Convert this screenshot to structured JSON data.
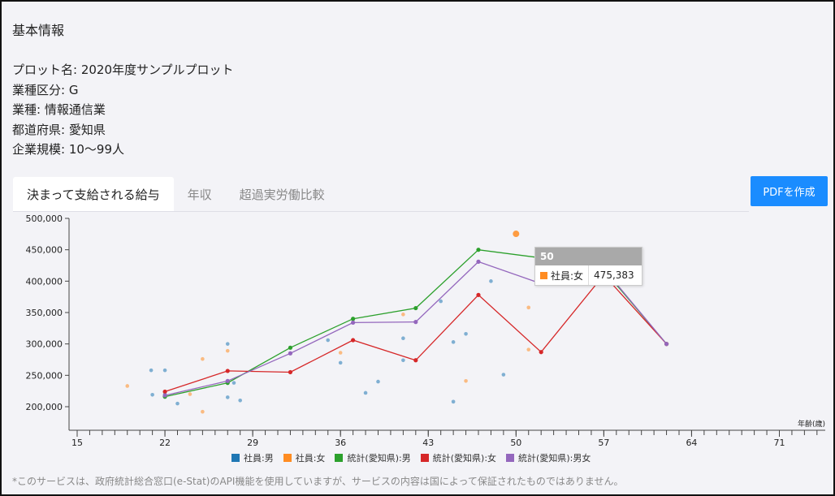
{
  "info": {
    "section_title": "基本情報",
    "plot_name": "プロット名: 2020年度サンプルプロット",
    "industry_class": "業種区分: G",
    "industry": "業種: 情報通信業",
    "prefecture": "都道府県: 愛知県",
    "company_size": "企業規模: 10〜99人"
  },
  "tabs": [
    {
      "label": "決まって支給される給与",
      "active": true
    },
    {
      "label": "年収",
      "active": false
    },
    {
      "label": "超過実労働比較",
      "active": false
    }
  ],
  "pdf_button": "PDFを作成",
  "footnote": "*このサービスは、政府統計総合窓口(e-Stat)のAPI機能を使用していますが、サービスの内容は国によって保証されたものではありません。",
  "tooltip": {
    "header": "50",
    "series": "社員:女",
    "value": "475,383",
    "color": "#ff8c22"
  },
  "colors": {
    "blue": "#1f77b4",
    "orange": "#ff8c22",
    "green": "#2ca02c",
    "red": "#d62728",
    "purple": "#9467bd",
    "pdf": "#1a8cff"
  },
  "chart_data": {
    "type": "scatter",
    "xlabel": "年齢(歳)",
    "ylabel": "",
    "xlim": [
      15,
      77
    ],
    "ylim": [
      170000,
      500000
    ],
    "x_ticks": [
      15,
      22,
      29,
      36,
      43,
      50,
      57,
      64,
      71
    ],
    "y_ticks": [
      200000,
      250000,
      300000,
      350000,
      400000,
      450000,
      500000
    ],
    "y_tick_labels": [
      "200,000",
      "250,000",
      "300,000",
      "350,000",
      "400,000",
      "450,000",
      "500,000"
    ],
    "legend": [
      "社員:男",
      "社員:女",
      "統計(愛知県):男",
      "統計(愛知県):女",
      "統計(愛知県):男女"
    ],
    "series": [
      {
        "name": "社員:男",
        "kind": "scatter",
        "color": "#1f77b4",
        "points": [
          [
            20.9,
            258000
          ],
          [
            21,
            219000
          ],
          [
            22,
            258000
          ],
          [
            22,
            220000
          ],
          [
            23,
            205000
          ],
          [
            27,
            300000
          ],
          [
            27,
            215000
          ],
          [
            28,
            210000
          ],
          [
            27.5,
            238000
          ],
          [
            35,
            306000
          ],
          [
            36,
            270000
          ],
          [
            38,
            222000
          ],
          [
            39,
            240000
          ],
          [
            41,
            309000
          ],
          [
            41,
            274000
          ],
          [
            44,
            368000
          ],
          [
            45,
            303000
          ],
          [
            45,
            208000
          ],
          [
            46,
            316000
          ],
          [
            48,
            400000
          ],
          [
            49,
            251000
          ]
        ]
      },
      {
        "name": "社員:女",
        "kind": "scatter",
        "color": "#ff8c22",
        "points": [
          [
            19,
            233000
          ],
          [
            24,
            220000
          ],
          [
            25,
            276000
          ],
          [
            25,
            192000
          ],
          [
            27,
            289000
          ],
          [
            36,
            286000
          ],
          [
            41,
            347000
          ],
          [
            46,
            241000
          ],
          [
            50,
            475383
          ],
          [
            51,
            358000
          ],
          [
            51,
            291000
          ]
        ]
      },
      {
        "name": "統計(愛知県):男",
        "kind": "line",
        "color": "#2ca02c",
        "points": [
          [
            22,
            216000
          ],
          [
            27,
            238000
          ],
          [
            32,
            294000
          ],
          [
            37,
            340000
          ],
          [
            42,
            357000
          ],
          [
            47,
            450000
          ],
          [
            52,
            437000
          ],
          [
            57,
            418000
          ],
          [
            62,
            300000
          ]
        ]
      },
      {
        "name": "統計(愛知県):女",
        "kind": "line",
        "color": "#d62728",
        "points": [
          [
            22,
            224000
          ],
          [
            27,
            257000
          ],
          [
            32,
            255000
          ],
          [
            37,
            306000
          ],
          [
            42,
            274000
          ],
          [
            47,
            378000
          ],
          [
            52,
            287000
          ],
          [
            57,
            410000
          ],
          [
            62,
            300000
          ]
        ]
      },
      {
        "name": "統計(愛知県):男女",
        "kind": "line",
        "color": "#9467bd",
        "points": [
          [
            22,
            218000
          ],
          [
            27,
            241000
          ],
          [
            32,
            285000
          ],
          [
            37,
            334000
          ],
          [
            42,
            335000
          ],
          [
            47,
            431000
          ],
          [
            52,
            396000
          ],
          [
            57,
            420000
          ],
          [
            62,
            300000
          ]
        ]
      }
    ]
  }
}
